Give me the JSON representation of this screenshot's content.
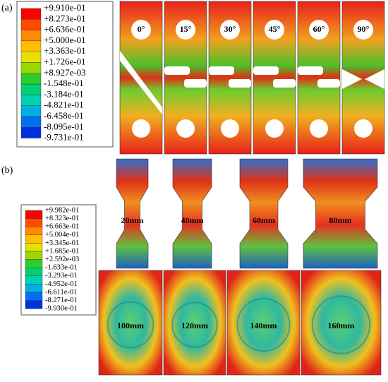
{
  "panel_a": {
    "label": "(a)",
    "legend": [
      "+9.910e-01",
      "+8.273e-01",
      "+6.636e-01",
      "+5.000e-01",
      "+3.363e-01",
      "+1.726e-01",
      "+8.927e-03",
      "-1.548e-01",
      "-3.184e-01",
      "-4.821e-01",
      "-6.458e-01",
      "-8.095e-01",
      "-9.731e-01"
    ],
    "specimens": [
      "0°",
      "15°",
      "30°",
      "45°",
      "60°",
      "90°"
    ]
  },
  "panel_b": {
    "label": "(b)",
    "legend": [
      "+9.982e-01",
      "+8.323e-01",
      "+6.663e-01",
      "+5.004e-01",
      "+3.345e-01",
      "+1.685e-01",
      "+2.592e-03",
      "-1.633e-01",
      "-3.293e-01",
      "-4.952e-01",
      "-6.611e-01",
      "-8.271e-01",
      "-9.930e-01"
    ],
    "specimens": [
      "20mm",
      "40mm",
      "60mm",
      "80mm",
      "100mm",
      "120mm",
      "140mm",
      "160mm"
    ]
  }
}
